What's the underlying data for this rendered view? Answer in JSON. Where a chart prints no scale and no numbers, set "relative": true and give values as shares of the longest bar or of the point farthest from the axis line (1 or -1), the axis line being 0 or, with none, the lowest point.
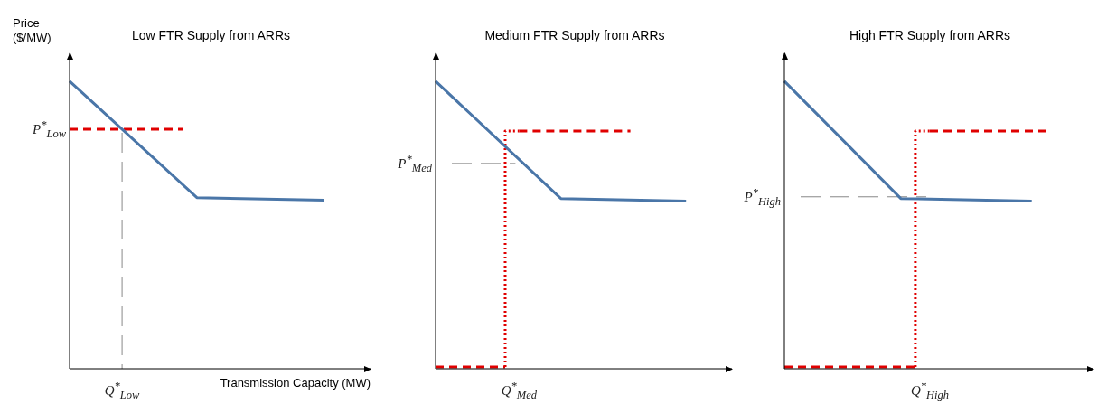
{
  "chart_data": [
    {
      "type": "line",
      "title": "Low FTR Supply from ARRs",
      "ylabel": "Price ($/MW)",
      "xlabel": "Transmission Capacity (MW)",
      "relative": true,
      "categories": [
        null,
        null,
        null,
        null,
        null,
        null,
        null,
        null,
        null,
        null,
        null,
        null,
        null,
        null,
        null,
        null,
        null,
        null,
        null,
        null,
        null
      ],
      "series": [
        {
          "color": "#4a76a8",
          "line_style": "solid",
          "values": [
            1,
            null,
            null,
            null,
            null,
            null,
            null,
            null,
            null,
            0.595,
            null,
            null,
            null,
            null,
            null,
            null,
            null,
            null,
            0.586,
            null,
            null
          ]
        },
        {
          "color": "#e00000",
          "line_style": "dashed",
          "values": [
            0.833,
            0.833,
            0.833,
            0.833,
            0.833,
            0.833,
            0.833,
            0.833,
            0.833,
            null,
            null,
            null,
            null,
            null,
            null,
            null,
            null,
            null,
            null,
            null,
            null
          ]
        }
      ],
      "annotations": [
        "P$^{*}$$_{Low}$",
        "Q$^{*}$$_{Low}$"
      ]
    },
    {
      "type": "line",
      "title": "Medium FTR Supply from ARRs",
      "relative": true,
      "categories": [
        null,
        null,
        null,
        null,
        null,
        null,
        null,
        null,
        null,
        null,
        null,
        null,
        null,
        null,
        null,
        null,
        null,
        null,
        null,
        null,
        null
      ],
      "series": [
        {
          "color": "#4a76a8",
          "line_style": "solid",
          "values": [
            1,
            null,
            null,
            null,
            null,
            null,
            null,
            null,
            null,
            0.592,
            null,
            null,
            null,
            null,
            null,
            null,
            null,
            null,
            0.583,
            null,
            null
          ]
        },
        {
          "type": "step",
          "color": "#e00000",
          "line_style": "dashed",
          "values": [
            0.006,
            0.006,
            0.006,
            0.006,
            0.006,
            0.006,
            0.827,
            0.827,
            0.827,
            0.827,
            0.827,
            0.827,
            0.827,
            0.827,
            0.827,
            null,
            null,
            null,
            null,
            null,
            null
          ]
        }
      ],
      "ref_lines": [
        {
          "axis": "y",
          "value": 0.714,
          "color": "#888888",
          "line_style": "dashed"
        }
      ],
      "annotations": [
        "P$^{*}$$_{Med}$",
        "Q$^{*}$$_{Med}$"
      ]
    },
    {
      "type": "line",
      "title": "High FTR Supply from ARRs",
      "relative": true,
      "categories": [
        null,
        null,
        null,
        null,
        null,
        null,
        null,
        null,
        null,
        null,
        null,
        null,
        null,
        null,
        null,
        null,
        null,
        null,
        null,
        null,
        null
      ],
      "series": [
        {
          "color": "#4a76a8",
          "line_style": "solid",
          "values": [
            1,
            null,
            null,
            null,
            null,
            null,
            null,
            null,
            0.592,
            null,
            null,
            null,
            null,
            null,
            null,
            null,
            null,
            0.583,
            null,
            null,
            null
          ]
        },
        {
          "type": "step",
          "color": "#e00000",
          "line_style": "dashed",
          "values": [
            0.006,
            0.006,
            0.006,
            0.006,
            0.006,
            0.006,
            0.006,
            0.006,
            0.006,
            0.006,
            0.827,
            0.827,
            0.827,
            0.827,
            0.827,
            0.827,
            0.827,
            0.827,
            0.827,
            null,
            null
          ]
        }
      ],
      "ref_lines": [
        {
          "axis": "y",
          "value": 0.598,
          "color": "#888888",
          "line_style": "dashed"
        }
      ],
      "annotations": [
        "P$^{*}$$_{High}$",
        "Q$^{*}$$_{High}$"
      ]
    }
  ]
}
